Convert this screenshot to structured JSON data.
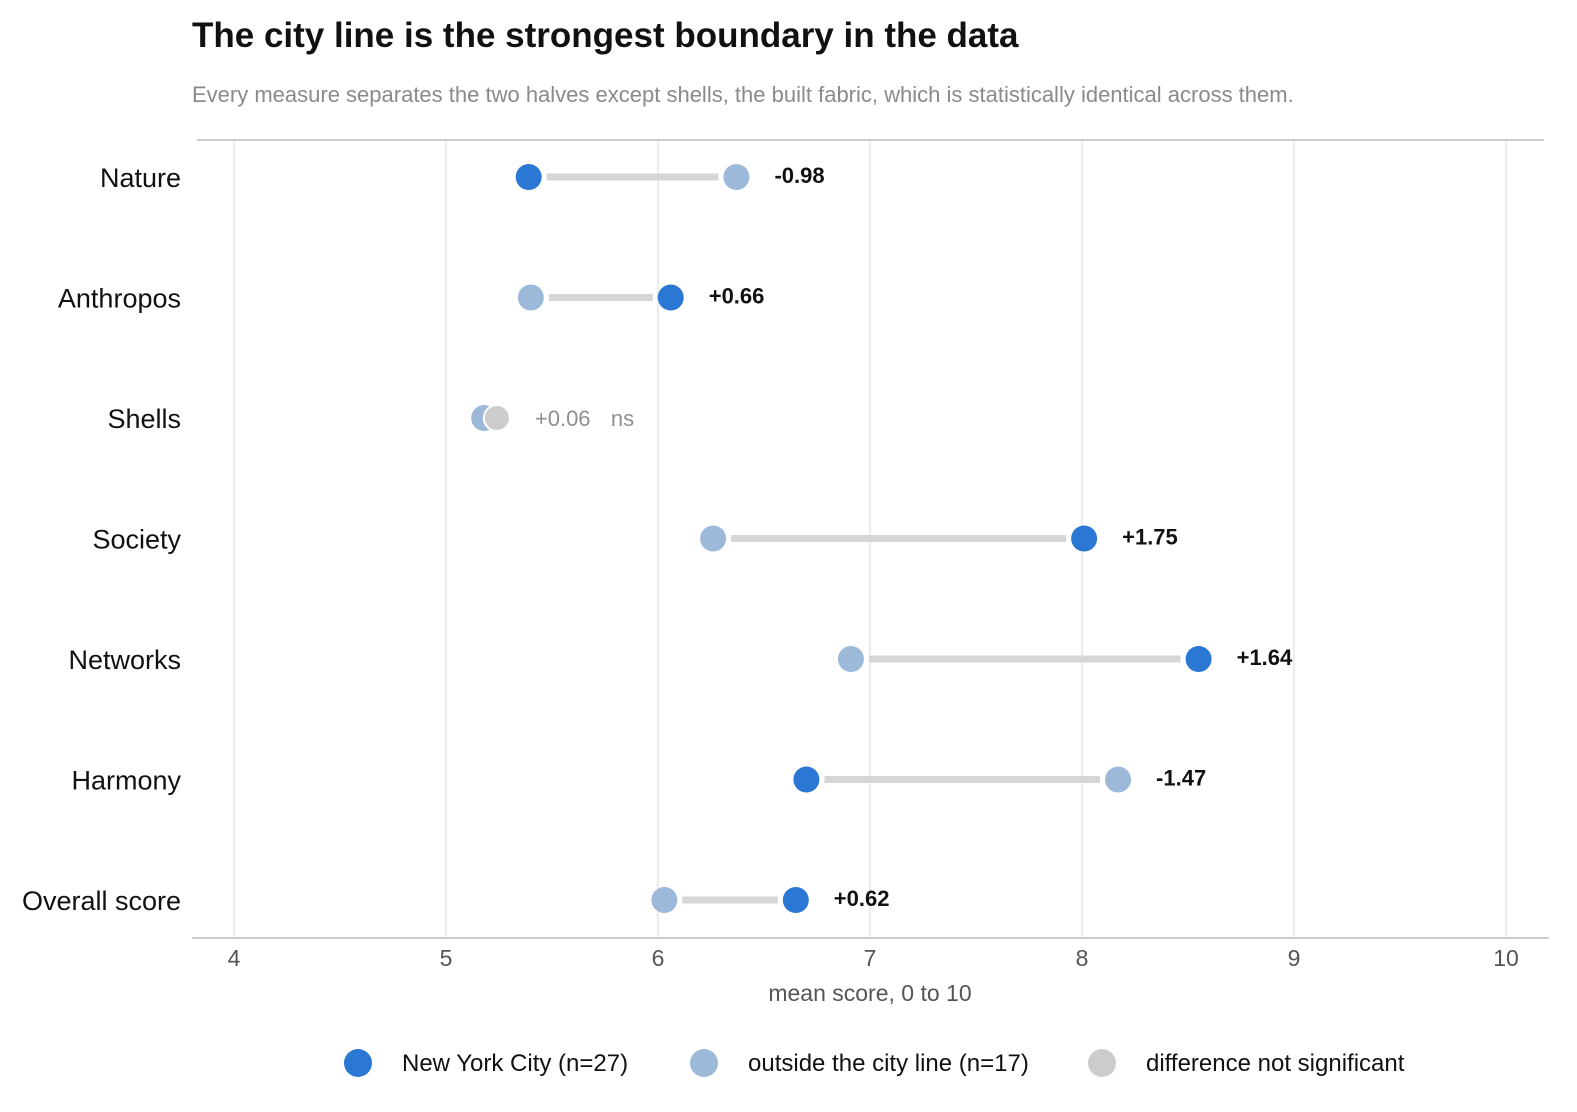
{
  "chart_data": {
    "type": "dumbbell",
    "title": "The city line is the strongest boundary in the data",
    "subtitle": "Every measure separates the two halves except shells, the built fabric, which is statistically identical across them.",
    "xlabel": "mean score, 0 to 10",
    "xlim": [
      4,
      10
    ],
    "x_ticks": [
      4,
      5,
      6,
      7,
      8,
      9,
      10
    ],
    "grid": "vertical",
    "legend_position": "bottom",
    "colors": {
      "nyc": "#2a77d4",
      "outside": "#9db9da",
      "not_significant": "#cccccc",
      "connector": "#d6d6d6",
      "grid": "#e6e6e6",
      "axis": "#cccccc"
    },
    "series": [
      {
        "key": "nyc",
        "name": "New York City (n=27)"
      },
      {
        "key": "outside",
        "name": "outside the city line (n=17)"
      }
    ],
    "legend": [
      {
        "key": "nyc",
        "label": "New York City (n=27)"
      },
      {
        "key": "outside",
        "label": "outside the city line (n=17)"
      },
      {
        "key": "not_significant",
        "label": "difference not significant"
      }
    ],
    "rows": [
      {
        "category": "Nature",
        "nyc": 5.39,
        "outside": 6.37,
        "diff_label": "-0.98",
        "significant": true
      },
      {
        "category": "Anthropos",
        "nyc": 6.06,
        "outside": 5.4,
        "diff_label": "+0.66",
        "significant": true
      },
      {
        "category": "Shells",
        "nyc": 5.24,
        "outside": 5.18,
        "diff_label": "+0.06",
        "ns_label": "ns",
        "significant": false
      },
      {
        "category": "Society",
        "nyc": 8.01,
        "outside": 6.26,
        "diff_label": "+1.75",
        "significant": true
      },
      {
        "category": "Networks",
        "nyc": 8.55,
        "outside": 6.91,
        "diff_label": "+1.64",
        "significant": true
      },
      {
        "category": "Harmony",
        "nyc": 6.7,
        "outside": 8.17,
        "diff_label": "-1.47",
        "significant": true
      },
      {
        "category": "Overall score",
        "nyc": 6.65,
        "outside": 6.03,
        "diff_label": "+0.62",
        "significant": true
      }
    ]
  }
}
